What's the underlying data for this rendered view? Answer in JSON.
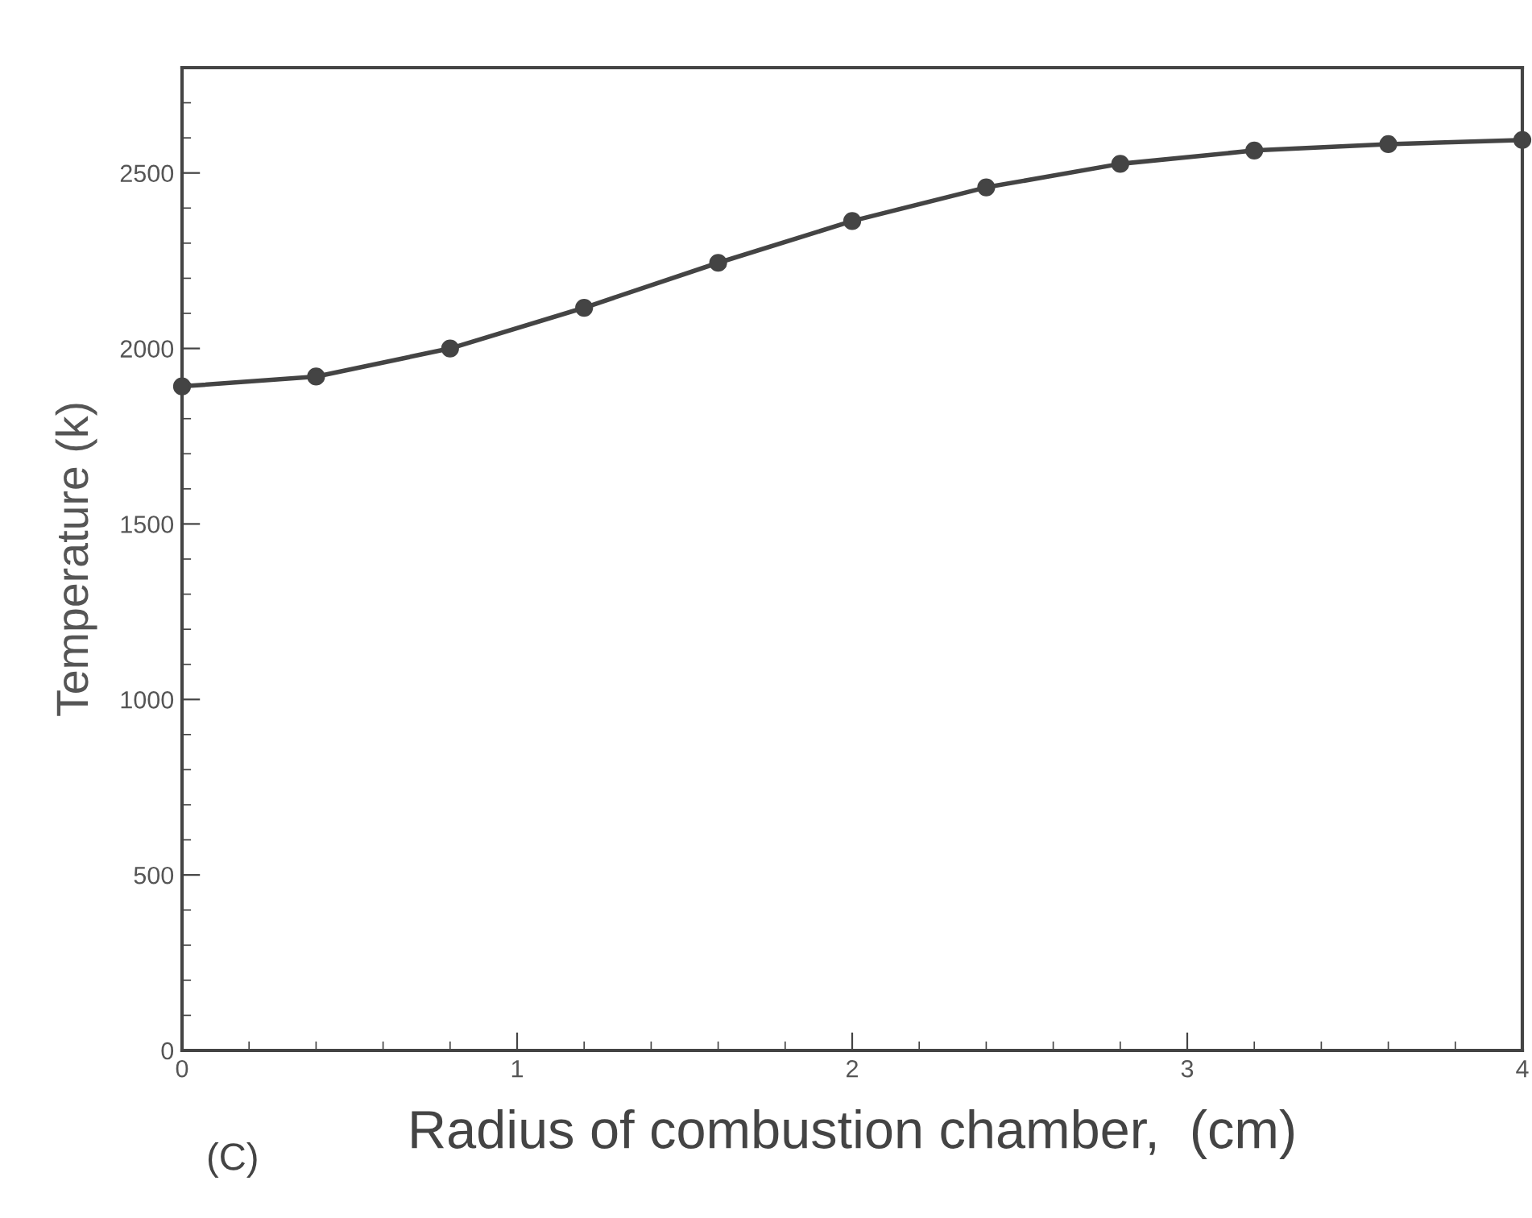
{
  "chart_data": {
    "type": "line",
    "xlabel": "Radius of combustion chamber,  (cm)",
    "ylabel": "Temperature (k)",
    "annotations": [
      "(C)"
    ],
    "x": [
      0,
      0.4,
      0.8,
      1.2,
      1.6,
      2.0,
      2.4,
      2.8,
      3.2,
      3.6,
      4.0
    ],
    "series": [
      {
        "color": "#444444",
        "values": [
          1892,
          1920,
          2000,
          2116,
          2244,
          2363,
          2459,
          2526,
          2564,
          2582,
          2594
        ]
      }
    ],
    "xlim": [
      0,
      4
    ],
    "xticks": [
      0,
      1,
      2,
      3,
      4
    ],
    "ylim": [
      0,
      2800
    ],
    "yticks": [
      0,
      500,
      1000,
      1500,
      2000,
      2500
    ],
    "marker": "circle",
    "line_style": "solid",
    "grid": false,
    "legend": false
  }
}
